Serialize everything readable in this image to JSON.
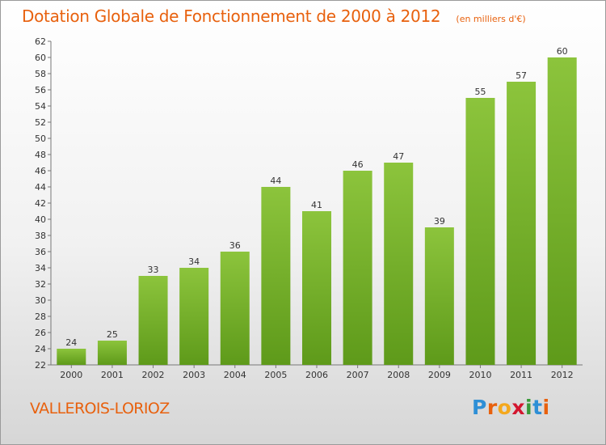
{
  "header": {
    "title": "Dotation Globale de Fonctionnement de 2000 à 2012",
    "subtitle": "(en milliers d'€)"
  },
  "footer": {
    "commune": "VALLEROIS-LORIOZ",
    "logo_letters": [
      "P",
      "r",
      "o",
      "x",
      "i",
      "t",
      "i"
    ],
    "logo_colors": [
      "#2e8fd6",
      "#e8610e",
      "#f4a81d",
      "#d3172f",
      "#3a9a3a",
      "#2e8fd6",
      "#e8610e"
    ]
  },
  "chart_data": {
    "type": "bar",
    "title": "Dotation Globale de Fonctionnement de 2000 à 2012",
    "subtitle": "(en milliers d'€)",
    "categories": [
      "2000",
      "2001",
      "2002",
      "2003",
      "2004",
      "2005",
      "2006",
      "2007",
      "2008",
      "2009",
      "2010",
      "2011",
      "2012"
    ],
    "values": [
      24,
      25,
      33,
      34,
      36,
      44,
      41,
      46,
      47,
      39,
      55,
      57,
      60
    ],
    "ylim": [
      22,
      62
    ],
    "yticks": [
      "22",
      "24",
      "26",
      "28",
      "30",
      "32",
      "34",
      "36",
      "38",
      "40",
      "42",
      "44",
      "46",
      "48",
      "50",
      "52",
      "54",
      "56",
      "58",
      "60",
      "62"
    ],
    "grid": false,
    "bar_color": "#8cc43c",
    "bar_color_dark": "#5e9a1a"
  }
}
